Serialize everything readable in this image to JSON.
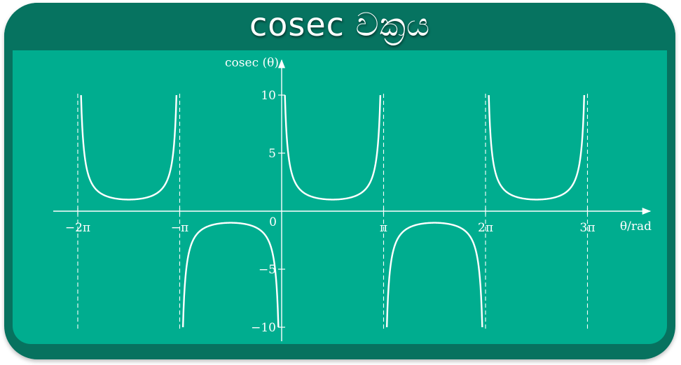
{
  "header": {
    "title": "cosec වක්‍රය"
  },
  "colors": {
    "background": "#00ad8f",
    "header": "#067360",
    "curve": "#ffffff"
  },
  "chart_data": {
    "type": "line",
    "title": "cosec වක්‍රය",
    "xlabel": "θ/rad",
    "ylabel": "cosec (θ)",
    "x_unit": "rad",
    "xlim": [
      -7.23,
      9.99
    ],
    "ylim": [
      -10,
      10
    ],
    "x_ticks": [
      {
        "value": -6.2832,
        "label": "−2π"
      },
      {
        "value": -3.1416,
        "label": "−π"
      },
      {
        "value": 3.1416,
        "label": "π"
      },
      {
        "value": 6.2832,
        "label": "2π"
      },
      {
        "value": 9.4248,
        "label": "3π"
      }
    ],
    "y_ticks": [
      {
        "value": 10,
        "label": "10"
      },
      {
        "value": 5,
        "label": "5"
      },
      {
        "value": -5,
        "label": "−5"
      },
      {
        "value": -10,
        "label": "−10"
      }
    ],
    "origin_label": "0",
    "asymptotes": [
      -6.2832,
      -3.1416,
      3.1416,
      6.2832,
      9.4248
    ],
    "grid": false,
    "series": [
      {
        "function": "cosec(θ)",
        "branches": [
          {
            "x": [
              -6.183,
              -5.8,
              -5.4,
              -5.0,
              -4.7124,
              -4.4,
              -4.0,
              -3.6,
              -3.2418
            ],
            "y": [
              10,
              2.26,
              1.3,
              1.04,
              1.0,
              1.05,
              1.32,
              2.26,
              10
            ]
          },
          {
            "x": [
              -3.0414,
              -2.7,
              -2.3,
              -1.9,
              -1.5708,
              -1.2,
              -0.8,
              -0.4,
              -0.1002
            ],
            "y": [
              -10,
              -2.34,
              -1.34,
              -1.06,
              -1.0,
              -1.07,
              -1.39,
              -2.57,
              -10
            ]
          },
          {
            "x": [
              0.1002,
              0.4,
              0.8,
              1.2,
              1.5708,
              1.9,
              2.3,
              2.7,
              3.0414
            ],
            "y": [
              10,
              2.57,
              1.39,
              1.07,
              1.0,
              1.06,
              1.34,
              2.34,
              10
            ]
          },
          {
            "x": [
              3.2418,
              3.6,
              4.0,
              4.4,
              4.7124,
              5.0,
              5.4,
              5.8,
              6.183
            ],
            "y": [
              -10,
              -2.26,
              -1.32,
              -1.05,
              -1.0,
              -1.04,
              -1.3,
              -2.26,
              -10
            ]
          },
          {
            "x": [
              6.3834,
              6.7,
              7.1,
              7.5,
              7.854,
              8.2,
              8.6,
              9.0,
              9.3246
            ],
            "y": [
              10,
              2.39,
              1.37,
              1.07,
              1.0,
              1.06,
              1.36,
              2.43,
              10
            ]
          }
        ]
      }
    ]
  }
}
